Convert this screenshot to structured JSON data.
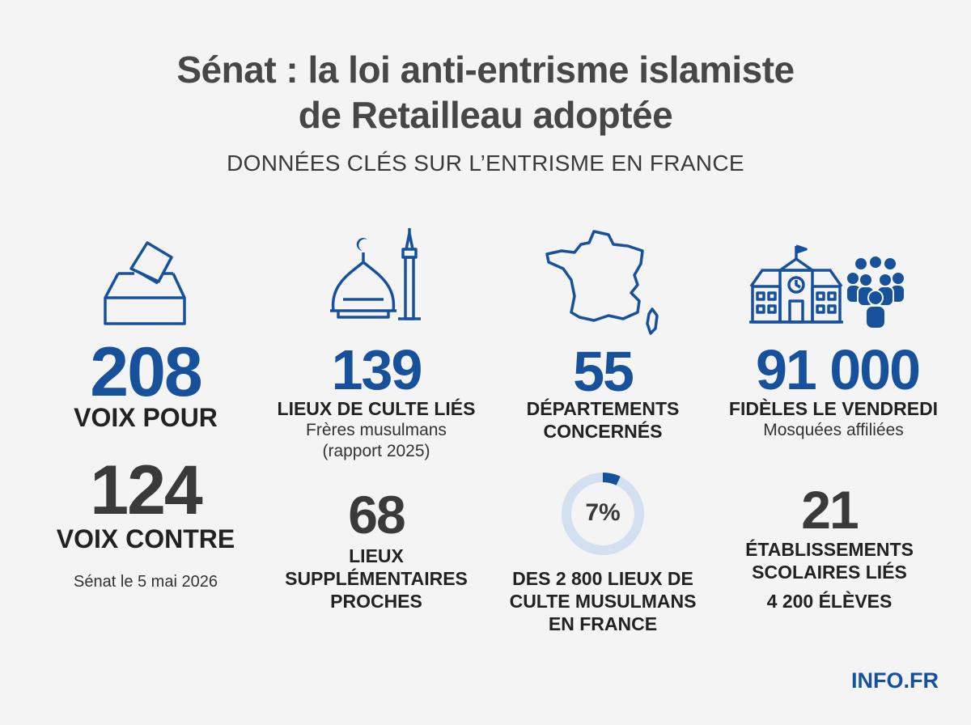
{
  "title_line1": "Sénat : la loi anti-entrisme islamiste",
  "title_line2": "de Retailleau adoptée",
  "subtitle": "DONNÉES CLÉS SUR L’ENTRISME EN FRANCE",
  "colors": {
    "accent": "#17519c",
    "dark": "#3a3a3a",
    "ring_track": "#d3e0ef",
    "background": "#f4f4f4"
  },
  "icons": [
    "ballot-box-icon",
    "mosque-icon",
    "france-map-icon",
    "school-icon",
    "crowd-icon"
  ],
  "votes": {
    "pour_value": "208",
    "pour_label": "VOIX POUR",
    "contre_value": "124",
    "contre_label": "VOIX CONTRE",
    "date_note": "Sénat le 5 mai 2026"
  },
  "cult": {
    "value": "139",
    "label": "LIEUX DE CULTE LIÉS",
    "note1": "Frères musulmans",
    "note2": "(rapport 2025)",
    "extra_value": "68",
    "extra_label1": "LIEUX",
    "extra_label2": "SUPPLÉMENTAIRES",
    "extra_label3": "PROCHES"
  },
  "departments": {
    "value": "55",
    "label1": "DÉPARTEMENTS",
    "label2": "CONCERNÉS",
    "percent_text": "7%",
    "percent_value": 7,
    "ring_label1": "DES 2 800 LIEUX DE",
    "ring_label2": "CULTE MUSULMANS",
    "ring_label3": "EN FRANCE"
  },
  "faithful": {
    "value": "91 000",
    "label": "FIDÈLES LE VENDREDI",
    "note": "Mosquées affiliées",
    "schools_value": "21",
    "schools_label1": "ÉTABLISSEMENTS",
    "schools_label2": "SCOLAIRES LIÉS",
    "students": "4 200 ÉLÈVES"
  },
  "brand": "INFO.FR"
}
